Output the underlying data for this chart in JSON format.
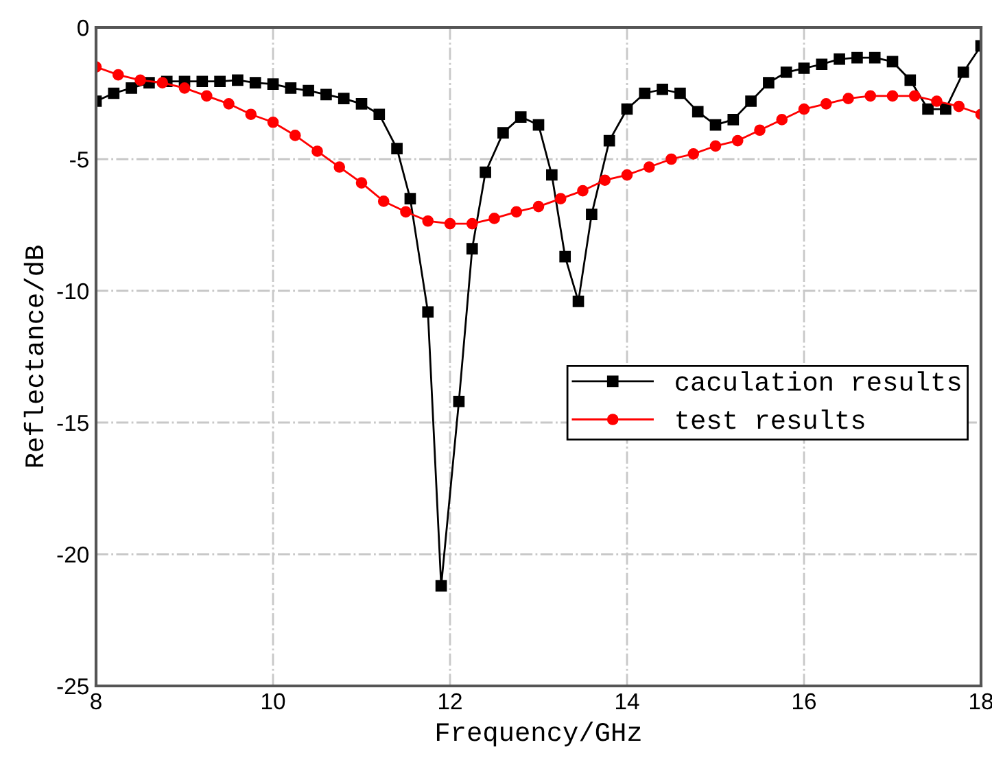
{
  "chart_data": {
    "type": "line",
    "xlabel": "Frequency/GHz",
    "ylabel": "Reflectance/dB",
    "xlim": [
      8,
      18
    ],
    "xticks": [
      8,
      10,
      12,
      14,
      16,
      18
    ],
    "ylim": [
      -25,
      0
    ],
    "yticks": [
      -25,
      -20,
      -15,
      -10,
      -5,
      0
    ],
    "grid": true,
    "legend": "right",
    "series": [
      {
        "name": "caculation results",
        "color": "#000000",
        "marker": "square",
        "x": [
          8.0,
          8.2,
          8.4,
          8.6,
          8.8,
          9.0,
          9.2,
          9.4,
          9.6,
          9.8,
          10.0,
          10.2,
          10.4,
          10.6,
          10.8,
          11.0,
          11.2,
          11.4,
          11.55,
          11.75,
          11.9,
          12.1,
          12.25,
          12.4,
          12.6,
          12.8,
          13.0,
          13.15,
          13.3,
          13.45,
          13.6,
          13.8,
          14.0,
          14.2,
          14.4,
          14.6,
          14.8,
          15.0,
          15.2,
          15.4,
          15.6,
          15.8,
          16.0,
          16.2,
          16.4,
          16.6,
          16.8,
          17.0,
          17.2,
          17.4,
          17.6,
          17.8,
          18.0
        ],
        "values": [
          -2.8,
          -2.5,
          -2.3,
          -2.1,
          -2.05,
          -2.05,
          -2.05,
          -2.05,
          -2.0,
          -2.1,
          -2.15,
          -2.3,
          -2.4,
          -2.55,
          -2.7,
          -2.9,
          -3.3,
          -4.6,
          -6.5,
          -10.8,
          -21.2,
          -14.2,
          -8.4,
          -5.5,
          -4.0,
          -3.4,
          -3.7,
          -5.6,
          -8.7,
          -10.4,
          -7.1,
          -4.3,
          -3.1,
          -2.5,
          -2.35,
          -2.5,
          -3.2,
          -3.7,
          -3.5,
          -2.8,
          -2.1,
          -1.7,
          -1.55,
          -1.4,
          -1.2,
          -1.15,
          -1.15,
          -1.3,
          -2.0,
          -3.1,
          -3.1,
          -1.7,
          -0.7
        ]
      },
      {
        "name": "test results",
        "color": "#ff0000",
        "marker": "circle",
        "x": [
          8.0,
          8.25,
          8.5,
          8.75,
          9.0,
          9.25,
          9.5,
          9.75,
          10.0,
          10.25,
          10.5,
          10.75,
          11.0,
          11.25,
          11.5,
          11.75,
          12.0,
          12.25,
          12.5,
          12.75,
          13.0,
          13.25,
          13.5,
          13.75,
          14.0,
          14.25,
          14.5,
          14.75,
          15.0,
          15.25,
          15.5,
          15.75,
          16.0,
          16.25,
          16.5,
          16.75,
          17.0,
          17.25,
          17.5,
          17.75,
          18.0
        ],
        "values": [
          -1.5,
          -1.8,
          -2.0,
          -2.1,
          -2.3,
          -2.6,
          -2.9,
          -3.3,
          -3.6,
          -4.1,
          -4.7,
          -5.3,
          -5.9,
          -6.6,
          -7.0,
          -7.35,
          -7.45,
          -7.45,
          -7.25,
          -7.0,
          -6.8,
          -6.5,
          -6.2,
          -5.8,
          -5.6,
          -5.3,
          -5.0,
          -4.8,
          -4.5,
          -4.3,
          -3.9,
          -3.5,
          -3.1,
          -2.9,
          -2.7,
          -2.6,
          -2.6,
          -2.6,
          -2.8,
          -3.0,
          -3.3
        ]
      }
    ]
  }
}
